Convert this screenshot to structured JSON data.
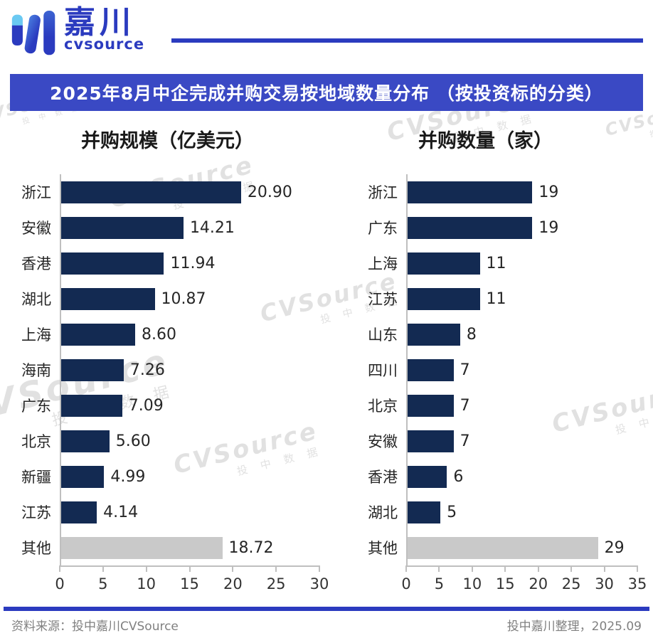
{
  "header": {
    "brand_cn": "嘉川",
    "brand_en": "cvsource",
    "banner_title": "2025年8月中企完成并购交易按地域数量分布 （按投资标的分类）"
  },
  "watermark": {
    "en": "CVSource",
    "cn": "投 中 数 据"
  },
  "chart_data": [
    {
      "type": "bar",
      "orientation": "horizontal",
      "title": "并购规模（亿美元）",
      "categories": [
        "浙江",
        "安徽",
        "香港",
        "湖北",
        "上海",
        "海南",
        "广东",
        "北京",
        "新疆",
        "江苏",
        "其他"
      ],
      "values": [
        20.9,
        14.21,
        11.94,
        10.87,
        8.6,
        7.26,
        7.09,
        5.6,
        4.99,
        4.14,
        18.72
      ],
      "labels": [
        "20.90",
        "14.21",
        "11.94",
        "10.87",
        "8.60",
        "7.26",
        "7.09",
        "5.60",
        "4.99",
        "4.14",
        "18.72"
      ],
      "gray_categories": [
        "其他"
      ],
      "xlim": [
        0,
        30
      ],
      "xticks": [
        0,
        5,
        10,
        15,
        20,
        25,
        30
      ],
      "grid": false,
      "legend": false
    },
    {
      "type": "bar",
      "orientation": "horizontal",
      "title": "并购数量（家）",
      "categories": [
        "浙江",
        "广东",
        "上海",
        "江苏",
        "山东",
        "四川",
        "北京",
        "安徽",
        "香港",
        "湖北",
        "其他"
      ],
      "values": [
        19,
        19,
        11,
        11,
        8,
        7,
        7,
        7,
        6,
        5,
        29
      ],
      "labels": [
        "19",
        "19",
        "11",
        "11",
        "8",
        "7",
        "7",
        "7",
        "6",
        "5",
        "29"
      ],
      "gray_categories": [
        "其他"
      ],
      "xlim": [
        0,
        35
      ],
      "xticks": [
        0,
        5,
        10,
        15,
        20,
        25,
        30,
        35
      ],
      "grid": false,
      "legend": false
    }
  ],
  "footer": {
    "source": "资料来源：投中嘉川CVSource",
    "credit": "投中嘉川整理，2025.09"
  },
  "colors": {
    "bar_navy": "#132A52",
    "bar_gray": "#C9C9C9",
    "brand_blue": "#2B3BBF",
    "banner_blue": "#3A49C4",
    "logo_light_blue": "#6AC9F2",
    "logo_mid_blue": "#4A7FE0"
  }
}
